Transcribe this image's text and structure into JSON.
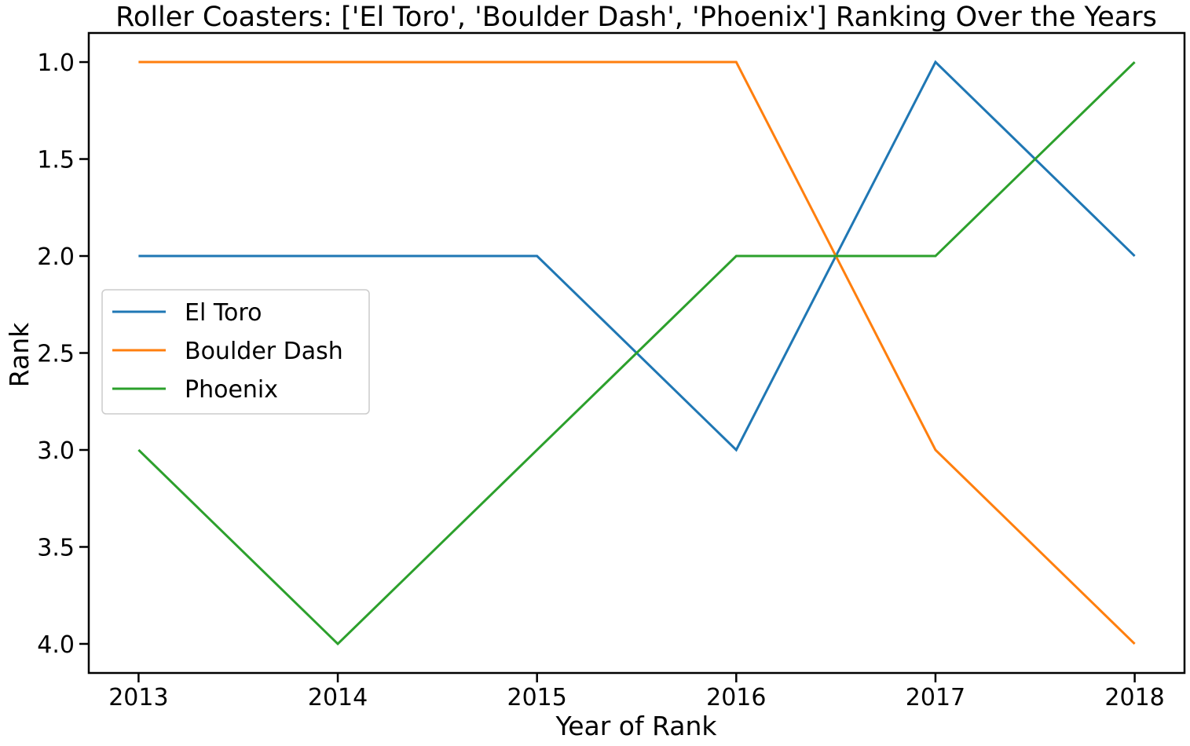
{
  "chart_data": {
    "type": "line",
    "title": "Roller Coasters: ['El Toro', 'Boulder Dash', 'Phoenix'] Ranking Over the Years",
    "xlabel": "Year of Rank",
    "ylabel": "Rank",
    "x": [
      2013,
      2014,
      2015,
      2016,
      2017,
      2018
    ],
    "xticks": [
      "2013",
      "2014",
      "2015",
      "2016",
      "2017",
      "2018"
    ],
    "yticks": [
      "1.0",
      "1.5",
      "2.0",
      "2.5",
      "3.0",
      "3.5",
      "4.0"
    ],
    "ylim": [
      4.15,
      0.85
    ],
    "y_inverted": true,
    "grid": false,
    "legend_position": "center-left",
    "series": [
      {
        "name": "El Toro",
        "color": "#1f77b4",
        "values": [
          2,
          2,
          2,
          3,
          1,
          2
        ]
      },
      {
        "name": "Boulder Dash",
        "color": "#ff7f0e",
        "values": [
          1,
          1,
          1,
          1,
          3,
          4
        ]
      },
      {
        "name": "Phoenix",
        "color": "#2ca02c",
        "values": [
          3,
          4,
          3,
          2,
          2,
          1
        ]
      }
    ]
  }
}
